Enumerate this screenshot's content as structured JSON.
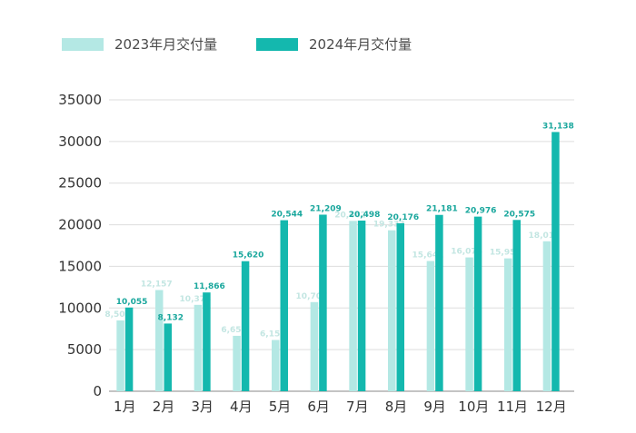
{
  "chart_data": {
    "type": "bar",
    "title": "",
    "xlabel": "",
    "ylabel": "",
    "ylim": [
      0,
      35000
    ],
    "yticks": [
      0,
      5000,
      10000,
      15000,
      20000,
      25000,
      30000,
      35000
    ],
    "grid": true,
    "legend_position": "top-left",
    "categories": [
      "1月",
      "2月",
      "3月",
      "4月",
      "5月",
      "6月",
      "7月",
      "8月",
      "9月",
      "10月",
      "11月",
      "12月"
    ],
    "series": [
      {
        "name": "2023年月交付量",
        "color": "#b4e8e4",
        "values": [
          8506,
          12157,
          10378,
          6658,
          6155,
          10707,
          20462,
          19333,
          15641,
          16074,
          15959,
          18012
        ],
        "labels": [
          "8,506",
          "12,157",
          "10,378",
          "6,658",
          "6,155",
          "10,707",
          "20,462",
          "19,333",
          "15,641",
          "16,074",
          "15,959",
          "18,012"
        ]
      },
      {
        "name": "2024年月交付量",
        "color": "#14b8ae",
        "values": [
          10055,
          8132,
          11866,
          15620,
          20544,
          21209,
          20498,
          20176,
          21181,
          20976,
          20575,
          31138
        ],
        "labels": [
          "10,055",
          "8,132",
          "11,866",
          "15,620",
          "20,544",
          "21,209",
          "20,498",
          "20,176",
          "21,181",
          "20,976",
          "20,575",
          "31,138"
        ]
      }
    ]
  }
}
